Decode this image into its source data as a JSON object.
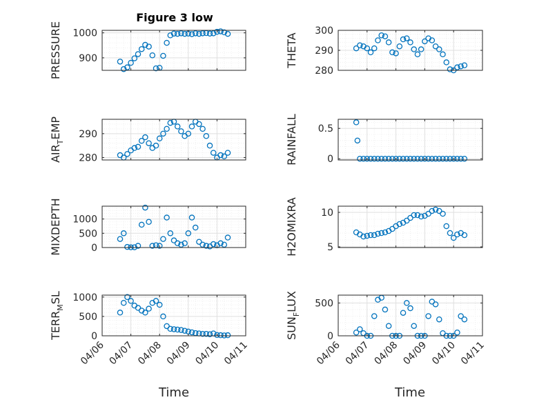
{
  "figure": {
    "title": "Figure 3 low",
    "xlabel": "Time"
  },
  "colors": {
    "marker": "#0072BD",
    "axis": "#262626",
    "grid": "#dfdfdf",
    "minor_grid": "#ececec"
  },
  "chart_data": [
    {
      "type": "scatter",
      "ylabel": "PRESSURE",
      "ylim": [
        850,
        1010
      ],
      "yticks": [
        900,
        1000
      ],
      "x": [
        "04/06 15:00",
        "04/06 18:00",
        "04/06 21:00",
        "04/07 00:00",
        "04/07 03:00",
        "04/07 06:00",
        "04/07 09:00",
        "04/07 12:00",
        "04/07 15:00",
        "04/07 18:00",
        "04/07 21:00",
        "04/08 00:00",
        "04/08 03:00",
        "04/08 06:00",
        "04/08 09:00",
        "04/08 12:00",
        "04/08 15:00",
        "04/08 18:00",
        "04/08 21:00",
        "04/09 00:00",
        "04/09 03:00",
        "04/09 06:00",
        "04/09 09:00",
        "04/09 12:00",
        "04/09 15:00",
        "04/09 18:00",
        "04/09 21:00",
        "04/10 00:00",
        "04/10 03:00",
        "04/10 06:00",
        "04/10 09:00"
      ],
      "y": [
        885,
        855,
        862,
        880,
        898,
        915,
        935,
        952,
        945,
        910,
        858,
        860,
        908,
        960,
        990,
        997,
        996,
        998,
        996,
        997,
        995,
        998,
        996,
        998,
        999,
        997,
        998,
        1004,
        1006,
        1002,
        996
      ]
    },
    {
      "type": "scatter",
      "ylabel": "THETA",
      "ylim": [
        280,
        300
      ],
      "yticks": [
        280,
        290,
        300
      ],
      "x": [
        "04/06 15:00",
        "04/06 18:00",
        "04/06 21:00",
        "04/07 00:00",
        "04/07 03:00",
        "04/07 06:00",
        "04/07 09:00",
        "04/07 12:00",
        "04/07 15:00",
        "04/07 18:00",
        "04/07 21:00",
        "04/08 00:00",
        "04/08 03:00",
        "04/08 06:00",
        "04/08 09:00",
        "04/08 12:00",
        "04/08 15:00",
        "04/08 18:00",
        "04/08 21:00",
        "04/09 00:00",
        "04/09 03:00",
        "04/09 06:00",
        "04/09 09:00",
        "04/09 12:00",
        "04/09 15:00",
        "04/09 18:00",
        "04/09 21:00",
        "04/10 00:00",
        "04/10 03:00",
        "04/10 06:00",
        "04/10 09:00"
      ],
      "y": [
        291,
        292.5,
        292,
        291,
        289,
        291,
        295,
        297.5,
        297,
        294,
        289,
        288.5,
        292,
        295.5,
        296,
        294,
        290.5,
        288,
        290.5,
        294.5,
        296,
        295,
        292,
        290.5,
        288,
        284,
        280.5,
        280,
        281.5,
        282,
        282.5
      ]
    },
    {
      "type": "scatter",
      "ylabel": "AIR_TEMP",
      "ylim": [
        279,
        296
      ],
      "yticks": [
        280,
        290
      ],
      "x": [
        "04/06 15:00",
        "04/06 18:00",
        "04/06 21:00",
        "04/07 00:00",
        "04/07 03:00",
        "04/07 06:00",
        "04/07 09:00",
        "04/07 12:00",
        "04/07 15:00",
        "04/07 18:00",
        "04/07 21:00",
        "04/08 00:00",
        "04/08 03:00",
        "04/08 06:00",
        "04/08 09:00",
        "04/08 12:00",
        "04/08 15:00",
        "04/08 18:00",
        "04/08 21:00",
        "04/09 00:00",
        "04/09 03:00",
        "04/09 06:00",
        "04/09 09:00",
        "04/09 12:00",
        "04/09 15:00",
        "04/09 18:00",
        "04/09 21:00",
        "04/10 00:00",
        "04/10 03:00",
        "04/10 06:00",
        "04/10 09:00"
      ],
      "y": [
        281,
        280,
        281.5,
        283,
        284,
        284.5,
        287,
        288.5,
        286,
        284,
        285,
        288,
        290,
        292,
        294.5,
        295,
        293,
        291,
        289,
        290,
        293,
        295,
        294,
        292,
        289,
        285,
        282,
        280,
        281,
        280.5,
        282
      ]
    },
    {
      "type": "scatter",
      "ylabel": "RAINFALL",
      "ylim": [
        -0.02,
        0.65
      ],
      "yticks": [
        0,
        0.5
      ],
      "x": [
        "04/06 15:00",
        "04/06 16:00",
        "04/06 18:00",
        "04/06 21:00",
        "04/07 00:00",
        "04/07 03:00",
        "04/07 06:00",
        "04/07 09:00",
        "04/07 12:00",
        "04/07 15:00",
        "04/07 18:00",
        "04/07 21:00",
        "04/08 00:00",
        "04/08 03:00",
        "04/08 06:00",
        "04/08 09:00",
        "04/08 12:00",
        "04/08 15:00",
        "04/08 18:00",
        "04/08 21:00",
        "04/09 00:00",
        "04/09 03:00",
        "04/09 06:00",
        "04/09 09:00",
        "04/09 12:00",
        "04/09 15:00",
        "04/09 18:00",
        "04/09 21:00",
        "04/10 00:00",
        "04/10 03:00",
        "04/10 06:00",
        "04/10 09:00"
      ],
      "y": [
        0.6,
        0.3,
        0,
        0,
        0,
        0,
        0,
        0,
        0,
        0,
        0,
        0,
        0,
        0,
        0,
        0,
        0,
        0,
        0,
        0,
        0,
        0,
        0,
        0,
        0,
        0,
        0,
        0,
        0,
        0,
        0,
        0
      ]
    },
    {
      "type": "scatter",
      "ylabel": "MIXDEPTH",
      "ylim": [
        0,
        1450
      ],
      "yticks": [
        0,
        500,
        1000
      ],
      "x": [
        "04/06 15:00",
        "04/06 18:00",
        "04/06 21:00",
        "04/07 00:00",
        "04/07 03:00",
        "04/07 06:00",
        "04/07 09:00",
        "04/07 12:00",
        "04/07 15:00",
        "04/07 18:00",
        "04/07 21:00",
        "04/08 00:00",
        "04/08 03:00",
        "04/08 06:00",
        "04/08 09:00",
        "04/08 12:00",
        "04/08 15:00",
        "04/08 18:00",
        "04/08 21:00",
        "04/09 00:00",
        "04/09 03:00",
        "04/09 06:00",
        "04/09 09:00",
        "04/09 12:00",
        "04/09 15:00",
        "04/09 18:00",
        "04/09 21:00",
        "04/10 00:00",
        "04/10 03:00",
        "04/10 06:00",
        "04/10 09:00"
      ],
      "y": [
        300,
        500,
        20,
        10,
        10,
        60,
        800,
        1400,
        900,
        60,
        80,
        60,
        300,
        1050,
        500,
        250,
        150,
        100,
        150,
        500,
        1050,
        700,
        200,
        100,
        60,
        40,
        120,
        80,
        150,
        100,
        350
      ]
    },
    {
      "type": "scatter",
      "ylabel": "H2OMIXRA",
      "ylim": [
        4.9,
        10.9
      ],
      "yticks": [
        5,
        10
      ],
      "x": [
        "04/06 15:00",
        "04/06 18:00",
        "04/06 21:00",
        "04/07 00:00",
        "04/07 03:00",
        "04/07 06:00",
        "04/07 09:00",
        "04/07 12:00",
        "04/07 15:00",
        "04/07 18:00",
        "04/07 21:00",
        "04/08 00:00",
        "04/08 03:00",
        "04/08 06:00",
        "04/08 09:00",
        "04/08 12:00",
        "04/08 15:00",
        "04/08 18:00",
        "04/08 21:00",
        "04/09 00:00",
        "04/09 03:00",
        "04/09 06:00",
        "04/09 09:00",
        "04/09 12:00",
        "04/09 15:00",
        "04/09 18:00",
        "04/09 21:00",
        "04/10 00:00",
        "04/10 03:00",
        "04/10 06:00",
        "04/10 09:00"
      ],
      "y": [
        7.1,
        6.8,
        6.5,
        6.6,
        6.7,
        6.7,
        6.9,
        7.0,
        7.1,
        7.3,
        7.6,
        8.0,
        8.3,
        8.5,
        8.8,
        9.2,
        9.6,
        9.6,
        9.4,
        9.5,
        9.8,
        10.2,
        10.4,
        10.2,
        9.8,
        8.0,
        7.0,
        6.3,
        6.8,
        7.0,
        6.7
      ]
    },
    {
      "type": "scatter",
      "ylabel": "TERR_MSL",
      "ylim": [
        0,
        1050
      ],
      "yticks": [
        0,
        500,
        1000
      ],
      "x": [
        "04/06 15:00",
        "04/06 18:00",
        "04/06 21:00",
        "04/07 00:00",
        "04/07 03:00",
        "04/07 06:00",
        "04/07 09:00",
        "04/07 12:00",
        "04/07 15:00",
        "04/07 18:00",
        "04/07 21:00",
        "04/08 00:00",
        "04/08 03:00",
        "04/08 06:00",
        "04/08 09:00",
        "04/08 12:00",
        "04/08 15:00",
        "04/08 18:00",
        "04/08 21:00",
        "04/09 00:00",
        "04/09 03:00",
        "04/09 06:00",
        "04/09 09:00",
        "04/09 12:00",
        "04/09 15:00",
        "04/09 18:00",
        "04/09 21:00",
        "04/10 00:00",
        "04/10 03:00",
        "04/10 06:00",
        "04/10 09:00"
      ],
      "y": [
        600,
        850,
        1000,
        900,
        780,
        720,
        650,
        600,
        700,
        850,
        900,
        800,
        500,
        250,
        180,
        170,
        160,
        150,
        130,
        110,
        90,
        70,
        60,
        50,
        50,
        40,
        60,
        20,
        15,
        10,
        15
      ]
    },
    {
      "type": "scatter",
      "ylabel": "SUN_FLUX",
      "ylim": [
        0,
        620
      ],
      "yticks": [
        0,
        500
      ],
      "x": [
        "04/06 15:00",
        "04/06 18:00",
        "04/06 21:00",
        "04/07 00:00",
        "04/07 03:00",
        "04/07 06:00",
        "04/07 09:00",
        "04/07 12:00",
        "04/07 15:00",
        "04/07 18:00",
        "04/07 21:00",
        "04/08 00:00",
        "04/08 03:00",
        "04/08 06:00",
        "04/08 09:00",
        "04/08 12:00",
        "04/08 15:00",
        "04/08 18:00",
        "04/08 21:00",
        "04/09 00:00",
        "04/09 03:00",
        "04/09 06:00",
        "04/09 09:00",
        "04/09 12:00",
        "04/09 15:00",
        "04/09 18:00",
        "04/09 21:00",
        "04/10 00:00",
        "04/10 03:00",
        "04/10 06:00",
        "04/10 09:00"
      ],
      "y": [
        50,
        100,
        40,
        0,
        0,
        300,
        550,
        580,
        400,
        150,
        0,
        0,
        0,
        350,
        500,
        420,
        150,
        0,
        0,
        0,
        300,
        520,
        480,
        250,
        40,
        0,
        0,
        0,
        50,
        300,
        250
      ]
    }
  ]
}
